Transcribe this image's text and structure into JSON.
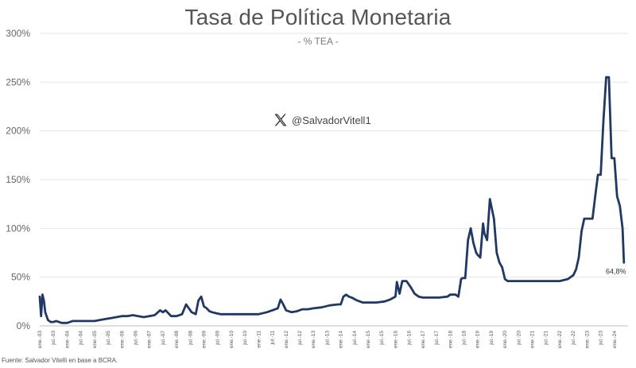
{
  "chart_data": {
    "type": "line",
    "title": "Tasa de Política Monetaria",
    "subtitle": "- % TEA -",
    "ylabel": "",
    "xlabel": "",
    "ylim": [
      0,
      300
    ],
    "y_ticks": [
      "0%",
      "50%",
      "100%",
      "150%",
      "200%",
      "250%",
      "300%"
    ],
    "x_tick_labels": [
      "ene.-03",
      "jul.-03",
      "ene.-04",
      "jul.-04",
      "ene.-05",
      "jul.-05",
      "ene.-06",
      "jul.-06",
      "ene.-07",
      "jul.-07",
      "ene.-08",
      "jul.-08",
      "ene.-09",
      "jul.-09",
      "ene.-10",
      "jul.-10",
      "ene.-11",
      "jul.-11",
      "ene.-12",
      "jul.-12",
      "ene.-13",
      "jul.-13",
      "ene.-14",
      "jul.-14",
      "ene.-15",
      "jul.-15",
      "ene.-16",
      "jul.-16",
      "ene.-17",
      "jul.-17",
      "ene.-18",
      "jul.-18",
      "ene.-19",
      "jul.-19",
      "ene.-20",
      "jul.-20",
      "ene.-21",
      "jul.-21",
      "ene.-22",
      "jul.-22",
      "ene.-23",
      "jul.-23",
      "ene.-24"
    ],
    "grid": "horizontal",
    "line_color": "#1f3864",
    "series": [
      {
        "name": "",
        "x": [
          2003.0,
          2003.05,
          2003.1,
          2003.15,
          2003.2,
          2003.3,
          2003.4,
          2003.5,
          2003.6,
          2003.7,
          2003.8,
          2003.9,
          2004.0,
          2004.2,
          2004.4,
          2004.6,
          2004.8,
          2005.0,
          2005.2,
          2005.4,
          2005.6,
          2005.8,
          2006.0,
          2006.2,
          2006.4,
          2006.6,
          2006.8,
          2007.0,
          2007.2,
          2007.4,
          2007.5,
          2007.6,
          2007.8,
          2007.9,
          2008.0,
          2008.2,
          2008.35,
          2008.45,
          2008.55,
          2008.7,
          2008.8,
          2008.9,
          2009.0,
          2009.1,
          2009.2,
          2009.3,
          2009.45,
          2009.6,
          2009.8,
          2010.0,
          2010.5,
          2011.0,
          2011.3,
          2011.5,
          2011.7,
          2011.8,
          2011.9,
          2012.0,
          2012.2,
          2012.4,
          2012.6,
          2012.8,
          2013.0,
          2013.3,
          2013.6,
          2013.9,
          2014.0,
          2014.1,
          2014.2,
          2014.3,
          2014.4,
          2014.6,
          2014.8,
          2015.0,
          2015.3,
          2015.6,
          2015.8,
          2016.0,
          2016.05,
          2016.15,
          2016.25,
          2016.4,
          2016.55,
          2016.7,
          2016.85,
          2017.0,
          2017.3,
          2017.6,
          2017.9,
          2018.0,
          2018.2,
          2018.3,
          2018.4,
          2018.45,
          2018.55,
          2018.65,
          2018.75,
          2018.85,
          2018.95,
          2019.0,
          2019.1,
          2019.2,
          2019.25,
          2019.35,
          2019.45,
          2019.6,
          2019.7,
          2019.8,
          2019.9,
          2020.0,
          2020.1,
          2020.2,
          2020.5,
          2020.8,
          2021.0,
          2021.5,
          2022.0,
          2022.3,
          2022.5,
          2022.6,
          2022.7,
          2022.8,
          2022.9,
          2023.0,
          2023.1,
          2023.2,
          2023.3,
          2023.4,
          2023.5,
          2023.6,
          2023.7,
          2023.8,
          2023.9,
          2024.0,
          2024.1,
          2024.2,
          2024.3,
          2024.35
        ],
        "y": [
          30,
          10,
          32,
          26,
          14,
          6,
          4,
          4,
          5,
          4,
          3,
          3,
          3,
          5,
          5,
          5,
          5,
          5,
          6,
          7,
          8,
          9,
          10,
          10,
          11,
          10,
          9,
          10,
          11,
          16,
          14,
          16,
          10,
          10,
          10,
          12,
          22,
          18,
          14,
          12,
          26,
          30,
          20,
          18,
          15,
          14,
          13,
          12,
          12,
          12,
          12,
          12,
          14,
          16,
          18,
          27,
          22,
          16,
          14,
          15,
          17,
          17,
          18,
          19,
          21,
          22,
          22,
          30,
          32,
          30,
          29,
          26,
          24,
          24,
          24,
          25,
          27,
          30,
          45,
          33,
          46,
          46,
          40,
          33,
          30,
          29,
          29,
          29,
          30,
          32,
          32,
          30,
          48,
          49,
          49,
          88,
          100,
          85,
          75,
          73,
          70,
          105,
          95,
          88,
          130,
          110,
          75,
          65,
          60,
          48,
          46,
          46,
          46,
          46,
          46,
          46,
          46,
          48,
          52,
          58,
          70,
          97,
          110,
          110,
          110,
          110,
          133,
          155,
          155,
          210,
          255,
          255,
          172,
          172,
          133,
          123,
          100,
          65
        ]
      }
    ],
    "last_value_label": "64,8%"
  },
  "watermark": {
    "icon": "x-logo-icon",
    "handle": "@SalvadorVitell1"
  },
  "source_note": "Fuente: Salvador Vitelli en base a BCRA."
}
